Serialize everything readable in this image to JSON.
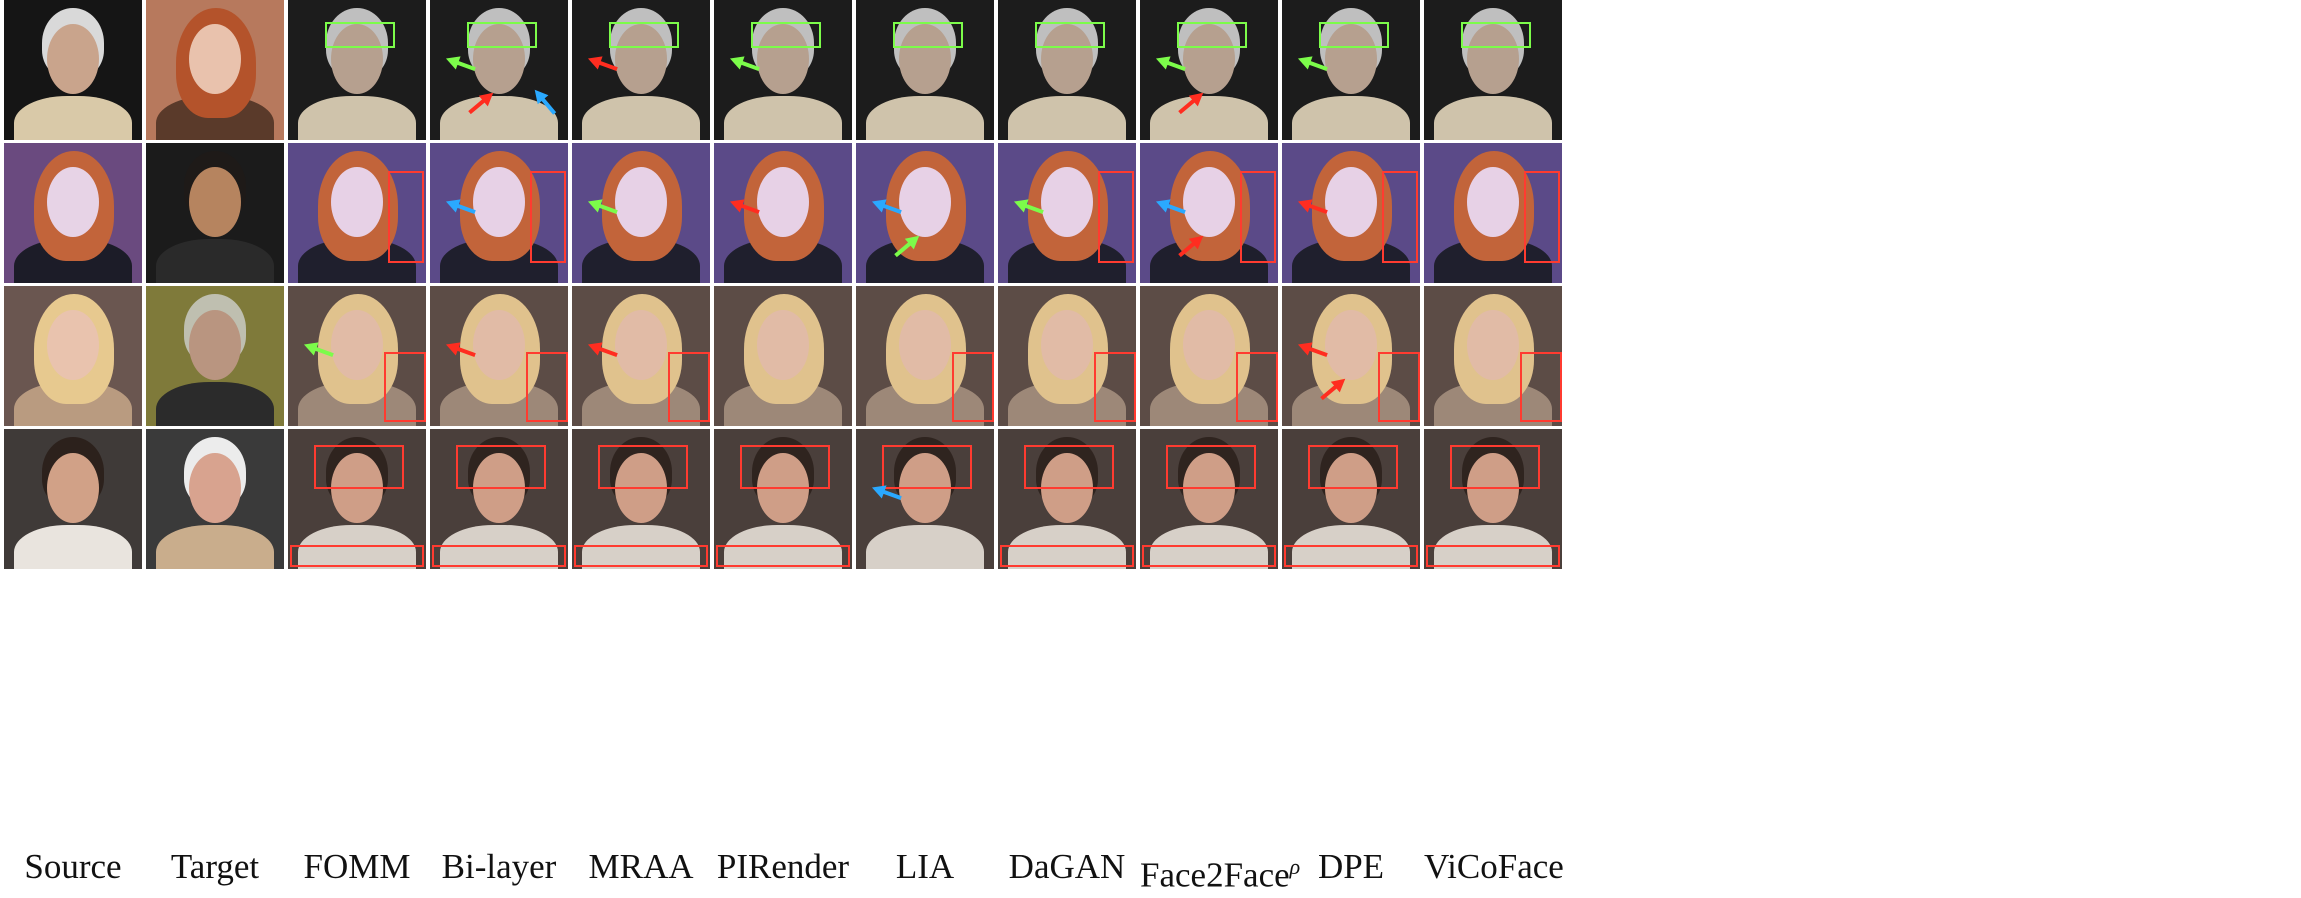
{
  "figure": {
    "columns": [
      {
        "label": "Source",
        "superscript": ""
      },
      {
        "label": "Target",
        "superscript": ""
      },
      {
        "label": "FOMM",
        "superscript": ""
      },
      {
        "label": "Bi-layer",
        "superscript": ""
      },
      {
        "label": "MRAA",
        "superscript": ""
      },
      {
        "label": "PIRender",
        "superscript": ""
      },
      {
        "label": "LIA",
        "superscript": ""
      },
      {
        "label": "DaGAN",
        "superscript": ""
      },
      {
        "label": "Face2Face",
        "superscript": "ρ"
      },
      {
        "label": "DPE",
        "superscript": ""
      },
      {
        "label": "ViCoFace",
        "superscript": ""
      }
    ],
    "rows": [
      {
        "source": {
          "bg": "#151515",
          "hair": "#d9d9d9",
          "skin": "#c9a48c",
          "cloth": "#d9c9a8"
        },
        "target": {
          "bg": "#b7795d",
          "hair": "#b4532b",
          "skin": "#e9c2ad",
          "cloth": "#5a3a2a"
        },
        "generated": {
          "bg": "#1c1c1c",
          "hair": "#bfbfbf",
          "skin": "#b6a08f",
          "cloth": "#cfc3ab"
        }
      },
      {
        "source": {
          "bg": "#6a4a7f",
          "hair": "#c2643a",
          "skin": "#e7d3e6",
          "cloth": "#1c1c28"
        },
        "target": {
          "bg": "#1b1b1b",
          "hair": "#1e1a18",
          "skin": "#b6845f",
          "cloth": "#2a2a2a"
        },
        "generated": {
          "bg": "#5b4a88",
          "hair": "#c2643a",
          "skin": "#e7d1e6",
          "cloth": "#1f1f2d"
        }
      },
      {
        "source": {
          "bg": "#6a5650",
          "hair": "#e7c98f",
          "skin": "#e9c3ae",
          "cloth": "#b99b80"
        },
        "target": {
          "bg": "#7f7a3a",
          "hair": "#bfbfb0",
          "skin": "#b99580",
          "cloth": "#2b2b2b"
        },
        "generated": {
          "bg": "#5c4c46",
          "hair": "#e0c28d",
          "skin": "#e1bba6",
          "cloth": "#9d8878"
        }
      },
      {
        "source": {
          "bg": "#3f3a38",
          "hair": "#2c211c",
          "skin": "#d1a187",
          "cloth": "#e9e4de"
        },
        "target": {
          "bg": "#3a3a3a",
          "hair": "#ececec",
          "skin": "#d8a38f",
          "cloth": "#c9ad8c"
        },
        "generated": {
          "bg": "#4a3f3b",
          "hair": "#2f241f",
          "skin": "#cf9e87",
          "cloth": "#d7d0c8"
        }
      }
    ],
    "annotations": [
      {
        "row": 0,
        "col": 2,
        "boxes": [
          {
            "color": "green"
          }
        ],
        "arrows": []
      },
      {
        "row": 0,
        "col": 3,
        "boxes": [
          {
            "color": "green"
          }
        ],
        "arrows": [
          {
            "color": "green"
          },
          {
            "color": "red"
          },
          {
            "color": "blue"
          }
        ]
      },
      {
        "row": 0,
        "col": 4,
        "boxes": [
          {
            "color": "green"
          }
        ],
        "arrows": [
          {
            "color": "red"
          }
        ]
      },
      {
        "row": 0,
        "col": 5,
        "boxes": [
          {
            "color": "green"
          }
        ],
        "arrows": [
          {
            "color": "green"
          }
        ]
      },
      {
        "row": 0,
        "col": 6,
        "boxes": [
          {
            "color": "green"
          }
        ],
        "arrows": []
      },
      {
        "row": 0,
        "col": 7,
        "boxes": [
          {
            "color": "green"
          }
        ],
        "arrows": []
      },
      {
        "row": 0,
        "col": 8,
        "boxes": [
          {
            "color": "green"
          }
        ],
        "arrows": [
          {
            "color": "green"
          },
          {
            "color": "red"
          }
        ]
      },
      {
        "row": 0,
        "col": 9,
        "boxes": [
          {
            "color": "green"
          }
        ],
        "arrows": [
          {
            "color": "green"
          }
        ]
      },
      {
        "row": 0,
        "col": 10,
        "boxes": [
          {
            "color": "green"
          }
        ],
        "arrows": []
      },
      {
        "row": 1,
        "col": 2,
        "boxes": [
          {
            "color": "red"
          }
        ],
        "arrows": []
      },
      {
        "row": 1,
        "col": 3,
        "boxes": [
          {
            "color": "red"
          }
        ],
        "arrows": [
          {
            "color": "blue"
          }
        ]
      },
      {
        "row": 1,
        "col": 4,
        "boxes": [],
        "arrows": [
          {
            "color": "green"
          }
        ]
      },
      {
        "row": 1,
        "col": 5,
        "boxes": [],
        "arrows": [
          {
            "color": "red"
          }
        ]
      },
      {
        "row": 1,
        "col": 6,
        "boxes": [],
        "arrows": [
          {
            "color": "blue"
          },
          {
            "color": "green"
          }
        ]
      },
      {
        "row": 1,
        "col": 7,
        "boxes": [
          {
            "color": "red"
          }
        ],
        "arrows": [
          {
            "color": "green"
          }
        ]
      },
      {
        "row": 1,
        "col": 8,
        "boxes": [
          {
            "color": "red"
          }
        ],
        "arrows": [
          {
            "color": "blue"
          },
          {
            "color": "red"
          }
        ]
      },
      {
        "row": 1,
        "col": 9,
        "boxes": [
          {
            "color": "red"
          }
        ],
        "arrows": [
          {
            "color": "red"
          }
        ]
      },
      {
        "row": 1,
        "col": 10,
        "boxes": [
          {
            "color": "red"
          }
        ],
        "arrows": []
      },
      {
        "row": 2,
        "col": 2,
        "boxes": [
          {
            "color": "red"
          }
        ],
        "arrows": [
          {
            "color": "green"
          }
        ]
      },
      {
        "row": 2,
        "col": 3,
        "boxes": [
          {
            "color": "red"
          }
        ],
        "arrows": [
          {
            "color": "red"
          }
        ]
      },
      {
        "row": 2,
        "col": 4,
        "boxes": [
          {
            "color": "red"
          }
        ],
        "arrows": [
          {
            "color": "red"
          }
        ]
      },
      {
        "row": 2,
        "col": 5,
        "boxes": [],
        "arrows": []
      },
      {
        "row": 2,
        "col": 6,
        "boxes": [
          {
            "color": "red"
          }
        ],
        "arrows": []
      },
      {
        "row": 2,
        "col": 7,
        "boxes": [
          {
            "color": "red"
          }
        ],
        "arrows": []
      },
      {
        "row": 2,
        "col": 8,
        "boxes": [
          {
            "color": "red"
          }
        ],
        "arrows": []
      },
      {
        "row": 2,
        "col": 9,
        "boxes": [
          {
            "color": "red"
          }
        ],
        "arrows": [
          {
            "color": "red"
          },
          {
            "color": "red"
          }
        ]
      },
      {
        "row": 2,
        "col": 10,
        "boxes": [
          {
            "color": "red"
          }
        ],
        "arrows": []
      },
      {
        "row": 3,
        "col": 2,
        "boxes": [
          {
            "color": "red"
          },
          {
            "color": "red"
          }
        ],
        "arrows": []
      },
      {
        "row": 3,
        "col": 3,
        "boxes": [
          {
            "color": "red"
          },
          {
            "color": "red"
          }
        ],
        "arrows": []
      },
      {
        "row": 3,
        "col": 4,
        "boxes": [
          {
            "color": "red"
          },
          {
            "color": "red"
          }
        ],
        "arrows": []
      },
      {
        "row": 3,
        "col": 5,
        "boxes": [
          {
            "color": "red"
          },
          {
            "color": "red"
          }
        ],
        "arrows": []
      },
      {
        "row": 3,
        "col": 6,
        "boxes": [
          {
            "color": "red"
          }
        ],
        "arrows": [
          {
            "color": "blue"
          }
        ]
      },
      {
        "row": 3,
        "col": 7,
        "boxes": [
          {
            "color": "red"
          },
          {
            "color": "red"
          }
        ],
        "arrows": []
      },
      {
        "row": 3,
        "col": 8,
        "boxes": [
          {
            "color": "red"
          },
          {
            "color": "red"
          }
        ],
        "arrows": []
      },
      {
        "row": 3,
        "col": 9,
        "boxes": [
          {
            "color": "red"
          },
          {
            "color": "red"
          }
        ],
        "arrows": []
      },
      {
        "row": 3,
        "col": 10,
        "boxes": [
          {
            "color": "red"
          },
          {
            "color": "red"
          }
        ],
        "arrows": []
      }
    ],
    "colors": {
      "green": "#7CFC4A",
      "red": "#ff2d20",
      "blue": "#2aa9ff"
    }
  }
}
